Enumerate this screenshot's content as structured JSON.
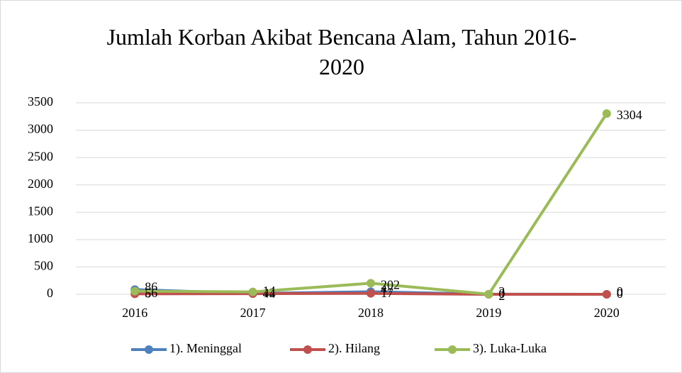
{
  "chart_data": {
    "type": "line",
    "title": "Jumlah Korban Akibat Bencana Alam, Tahun 2016-2020",
    "categories": [
      "2016",
      "2017",
      "2018",
      "2019",
      "2020"
    ],
    "series": [
      {
        "name": "1). Meninggal",
        "color": "#4f81bd",
        "label_color": "#000000",
        "values": [
          86,
          14,
          47,
          2,
          0
        ]
      },
      {
        "name": "2). Hilang",
        "color": "#c0504d",
        "label_color": "#000000",
        "values": [
          8,
          12,
          17,
          0,
          0
        ]
      },
      {
        "name": "3). Luka-Luka",
        "color": "#9bbb59",
        "label_color": "#9bbb59",
        "values": [
          56,
          44,
          202,
          2,
          3304
        ]
      }
    ],
    "ylim": [
      0,
      3500
    ],
    "yticks": [
      0,
      500,
      1000,
      1500,
      2000,
      2500,
      3000,
      3500
    ],
    "grid": true,
    "legend": "bottom"
  }
}
